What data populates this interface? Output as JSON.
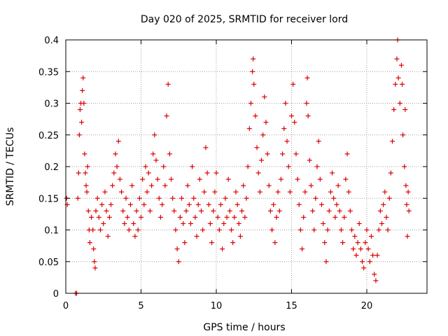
{
  "chart_data": {
    "type": "scatter",
    "title": "Day 020 of 2025, SRMTID for receiver lord",
    "xlabel": "GPS time / hours",
    "ylabel": "SRMTID / TECUs",
    "xlim": [
      0,
      24
    ],
    "ylim": [
      0,
      0.4
    ],
    "x_ticks": [
      0,
      5,
      10,
      15,
      20
    ],
    "x_tick_labels": [
      "0",
      "5",
      "10",
      "15",
      "20"
    ],
    "y_ticks": [
      0,
      0.05,
      0.1,
      0.15,
      0.2,
      0.25,
      0.3,
      0.35,
      0.4
    ],
    "y_tick_labels": [
      "0",
      "0.05",
      "0.1",
      "0.15",
      "0.2",
      "0.25",
      "0.3",
      "0.35",
      "0.4"
    ],
    "grid": true,
    "marker": "+",
    "marker_color": "#dd0000",
    "series": [
      {
        "name": "SRMTID",
        "points": [
          [
            0.05,
            0.15
          ],
          [
            0.1,
            0.14
          ],
          [
            0.65,
            0.0
          ],
          [
            0.72,
            0.0
          ],
          [
            0.8,
            0.15
          ],
          [
            0.85,
            0.19
          ],
          [
            0.9,
            0.25
          ],
          [
            0.95,
            0.29
          ],
          [
            1.0,
            0.3
          ],
          [
            1.05,
            0.27
          ],
          [
            1.1,
            0.32
          ],
          [
            1.15,
            0.34
          ],
          [
            1.2,
            0.3
          ],
          [
            1.25,
            0.22
          ],
          [
            1.3,
            0.19
          ],
          [
            1.35,
            0.17
          ],
          [
            1.4,
            0.16
          ],
          [
            1.45,
            0.2
          ],
          [
            1.5,
            0.13
          ],
          [
            1.55,
            0.1
          ],
          [
            1.6,
            0.08
          ],
          [
            1.7,
            0.12
          ],
          [
            1.8,
            0.1
          ],
          [
            1.85,
            0.07
          ],
          [
            1.9,
            0.05
          ],
          [
            1.95,
            0.04
          ],
          [
            2.0,
            0.13
          ],
          [
            2.1,
            0.15
          ],
          [
            2.2,
            0.12
          ],
          [
            2.3,
            0.1
          ],
          [
            2.4,
            0.14
          ],
          [
            2.5,
            0.11
          ],
          [
            2.6,
            0.16
          ],
          [
            2.7,
            0.13
          ],
          [
            2.8,
            0.09
          ],
          [
            2.9,
            0.12
          ],
          [
            3.0,
            0.14
          ],
          [
            3.1,
            0.17
          ],
          [
            3.2,
            0.19
          ],
          [
            3.3,
            0.22
          ],
          [
            3.4,
            0.2
          ],
          [
            3.5,
            0.24
          ],
          [
            3.6,
            0.18
          ],
          [
            3.7,
            0.16
          ],
          [
            3.8,
            0.13
          ],
          [
            3.9,
            0.11
          ],
          [
            4.0,
            0.15
          ],
          [
            4.1,
            0.12
          ],
          [
            4.2,
            0.1
          ],
          [
            4.3,
            0.14
          ],
          [
            4.4,
            0.17
          ],
          [
            4.5,
            0.11
          ],
          [
            4.6,
            0.09
          ],
          [
            4.7,
            0.13
          ],
          [
            4.8,
            0.1
          ],
          [
            4.9,
            0.15
          ],
          [
            5.0,
            0.12
          ],
          [
            5.1,
            0.18
          ],
          [
            5.2,
            0.14
          ],
          [
            5.3,
            0.2
          ],
          [
            5.4,
            0.16
          ],
          [
            5.5,
            0.19
          ],
          [
            5.6,
            0.13
          ],
          [
            5.7,
            0.17
          ],
          [
            5.8,
            0.22
          ],
          [
            5.9,
            0.25
          ],
          [
            6.0,
            0.21
          ],
          [
            6.1,
            0.18
          ],
          [
            6.2,
            0.15
          ],
          [
            6.3,
            0.12
          ],
          [
            6.4,
            0.14
          ],
          [
            6.5,
            0.2
          ],
          [
            6.6,
            0.17
          ],
          [
            6.7,
            0.28
          ],
          [
            6.8,
            0.33
          ],
          [
            6.9,
            0.22
          ],
          [
            7.0,
            0.18
          ],
          [
            7.1,
            0.15
          ],
          [
            7.2,
            0.13
          ],
          [
            7.3,
            0.1
          ],
          [
            7.4,
            0.07
          ],
          [
            7.5,
            0.05
          ],
          [
            7.6,
            0.12
          ],
          [
            7.7,
            0.15
          ],
          [
            7.8,
            0.11
          ],
          [
            7.9,
            0.08
          ],
          [
            8.0,
            0.13
          ],
          [
            8.1,
            0.17
          ],
          [
            8.2,
            0.14
          ],
          [
            8.3,
            0.11
          ],
          [
            8.4,
            0.2
          ],
          [
            8.5,
            0.15
          ],
          [
            8.6,
            0.12
          ],
          [
            8.7,
            0.09
          ],
          [
            8.8,
            0.14
          ],
          [
            8.9,
            0.18
          ],
          [
            9.0,
            0.13
          ],
          [
            9.1,
            0.1
          ],
          [
            9.2,
            0.16
          ],
          [
            9.3,
            0.23
          ],
          [
            9.4,
            0.19
          ],
          [
            9.5,
            0.14
          ],
          [
            9.6,
            0.11
          ],
          [
            9.7,
            0.08
          ],
          [
            9.8,
            0.13
          ],
          [
            9.9,
            0.16
          ],
          [
            10.0,
            0.19
          ],
          [
            10.1,
            0.12
          ],
          [
            10.2,
            0.1
          ],
          [
            10.3,
            0.14
          ],
          [
            10.4,
            0.07
          ],
          [
            10.5,
            0.11
          ],
          [
            10.6,
            0.15
          ],
          [
            10.7,
            0.12
          ],
          [
            10.8,
            0.18
          ],
          [
            10.9,
            0.13
          ],
          [
            11.0,
            0.1
          ],
          [
            11.1,
            0.08
          ],
          [
            11.2,
            0.12
          ],
          [
            11.3,
            0.16
          ],
          [
            11.4,
            0.14
          ],
          [
            11.5,
            0.11
          ],
          [
            11.6,
            0.09
          ],
          [
            11.7,
            0.13
          ],
          [
            11.8,
            0.17
          ],
          [
            11.9,
            0.12
          ],
          [
            12.0,
            0.15
          ],
          [
            12.1,
            0.2
          ],
          [
            12.2,
            0.26
          ],
          [
            12.3,
            0.3
          ],
          [
            12.4,
            0.35
          ],
          [
            12.45,
            0.37
          ],
          [
            12.5,
            0.33
          ],
          [
            12.6,
            0.28
          ],
          [
            12.7,
            0.23
          ],
          [
            12.8,
            0.19
          ],
          [
            12.9,
            0.16
          ],
          [
            13.0,
            0.21
          ],
          [
            13.1,
            0.25
          ],
          [
            13.2,
            0.31
          ],
          [
            13.3,
            0.27
          ],
          [
            13.4,
            0.22
          ],
          [
            13.5,
            0.17
          ],
          [
            13.6,
            0.13
          ],
          [
            13.7,
            0.1
          ],
          [
            13.8,
            0.14
          ],
          [
            13.9,
            0.08
          ],
          [
            14.0,
            0.12
          ],
          [
            14.1,
            0.16
          ],
          [
            14.2,
            0.13
          ],
          [
            14.3,
            0.18
          ],
          [
            14.4,
            0.22
          ],
          [
            14.5,
            0.26
          ],
          [
            14.6,
            0.3
          ],
          [
            14.7,
            0.24
          ],
          [
            14.8,
            0.2
          ],
          [
            14.9,
            0.16
          ],
          [
            15.0,
            0.28
          ],
          [
            15.1,
            0.33
          ],
          [
            15.2,
            0.27
          ],
          [
            15.3,
            0.22
          ],
          [
            15.4,
            0.18
          ],
          [
            15.5,
            0.14
          ],
          [
            15.6,
            0.1
          ],
          [
            15.7,
            0.07
          ],
          [
            15.8,
            0.12
          ],
          [
            15.9,
            0.16
          ],
          [
            16.0,
            0.3
          ],
          [
            16.05,
            0.34
          ],
          [
            16.1,
            0.28
          ],
          [
            16.2,
            0.21
          ],
          [
            16.3,
            0.17
          ],
          [
            16.4,
            0.13
          ],
          [
            16.5,
            0.1
          ],
          [
            16.6,
            0.15
          ],
          [
            16.7,
            0.2
          ],
          [
            16.8,
            0.24
          ],
          [
            16.9,
            0.18
          ],
          [
            17.0,
            0.14
          ],
          [
            17.1,
            0.11
          ],
          [
            17.2,
            0.08
          ],
          [
            17.3,
            0.05
          ],
          [
            17.4,
            0.1
          ],
          [
            17.5,
            0.13
          ],
          [
            17.6,
            0.16
          ],
          [
            17.7,
            0.19
          ],
          [
            17.8,
            0.15
          ],
          [
            17.9,
            0.12
          ],
          [
            18.0,
            0.14
          ],
          [
            18.1,
            0.17
          ],
          [
            18.2,
            0.13
          ],
          [
            18.3,
            0.1
          ],
          [
            18.4,
            0.08
          ],
          [
            18.5,
            0.12
          ],
          [
            18.6,
            0.18
          ],
          [
            18.7,
            0.22
          ],
          [
            18.8,
            0.16
          ],
          [
            18.9,
            0.13
          ],
          [
            19.0,
            0.1
          ],
          [
            19.1,
            0.07
          ],
          [
            19.2,
            0.09
          ],
          [
            19.3,
            0.06
          ],
          [
            19.4,
            0.08
          ],
          [
            19.5,
            0.11
          ],
          [
            19.6,
            0.07
          ],
          [
            19.7,
            0.05
          ],
          [
            19.8,
            0.04
          ],
          [
            19.9,
            0.08
          ],
          [
            20.0,
            0.1
          ],
          [
            20.1,
            0.07
          ],
          [
            20.2,
            0.05
          ],
          [
            20.3,
            0.09
          ],
          [
            20.4,
            0.06
          ],
          [
            20.5,
            0.03
          ],
          [
            20.6,
            0.02
          ],
          [
            20.7,
            0.06
          ],
          [
            20.8,
            0.1
          ],
          [
            20.9,
            0.13
          ],
          [
            21.0,
            0.11
          ],
          [
            21.1,
            0.14
          ],
          [
            21.2,
            0.16
          ],
          [
            21.3,
            0.12
          ],
          [
            21.4,
            0.1
          ],
          [
            21.5,
            0.15
          ],
          [
            21.6,
            0.19
          ],
          [
            21.7,
            0.24
          ],
          [
            21.8,
            0.29
          ],
          [
            21.9,
            0.33
          ],
          [
            22.0,
            0.37
          ],
          [
            22.05,
            0.4
          ],
          [
            22.1,
            0.34
          ],
          [
            22.2,
            0.3
          ],
          [
            22.3,
            0.36
          ],
          [
            22.35,
            0.33
          ],
          [
            22.4,
            0.25
          ],
          [
            22.5,
            0.2
          ],
          [
            22.55,
            0.29
          ],
          [
            22.6,
            0.17
          ],
          [
            22.65,
            0.14
          ],
          [
            22.7,
            0.09
          ],
          [
            22.75,
            0.16
          ],
          [
            22.8,
            0.13
          ]
        ]
      }
    ]
  }
}
